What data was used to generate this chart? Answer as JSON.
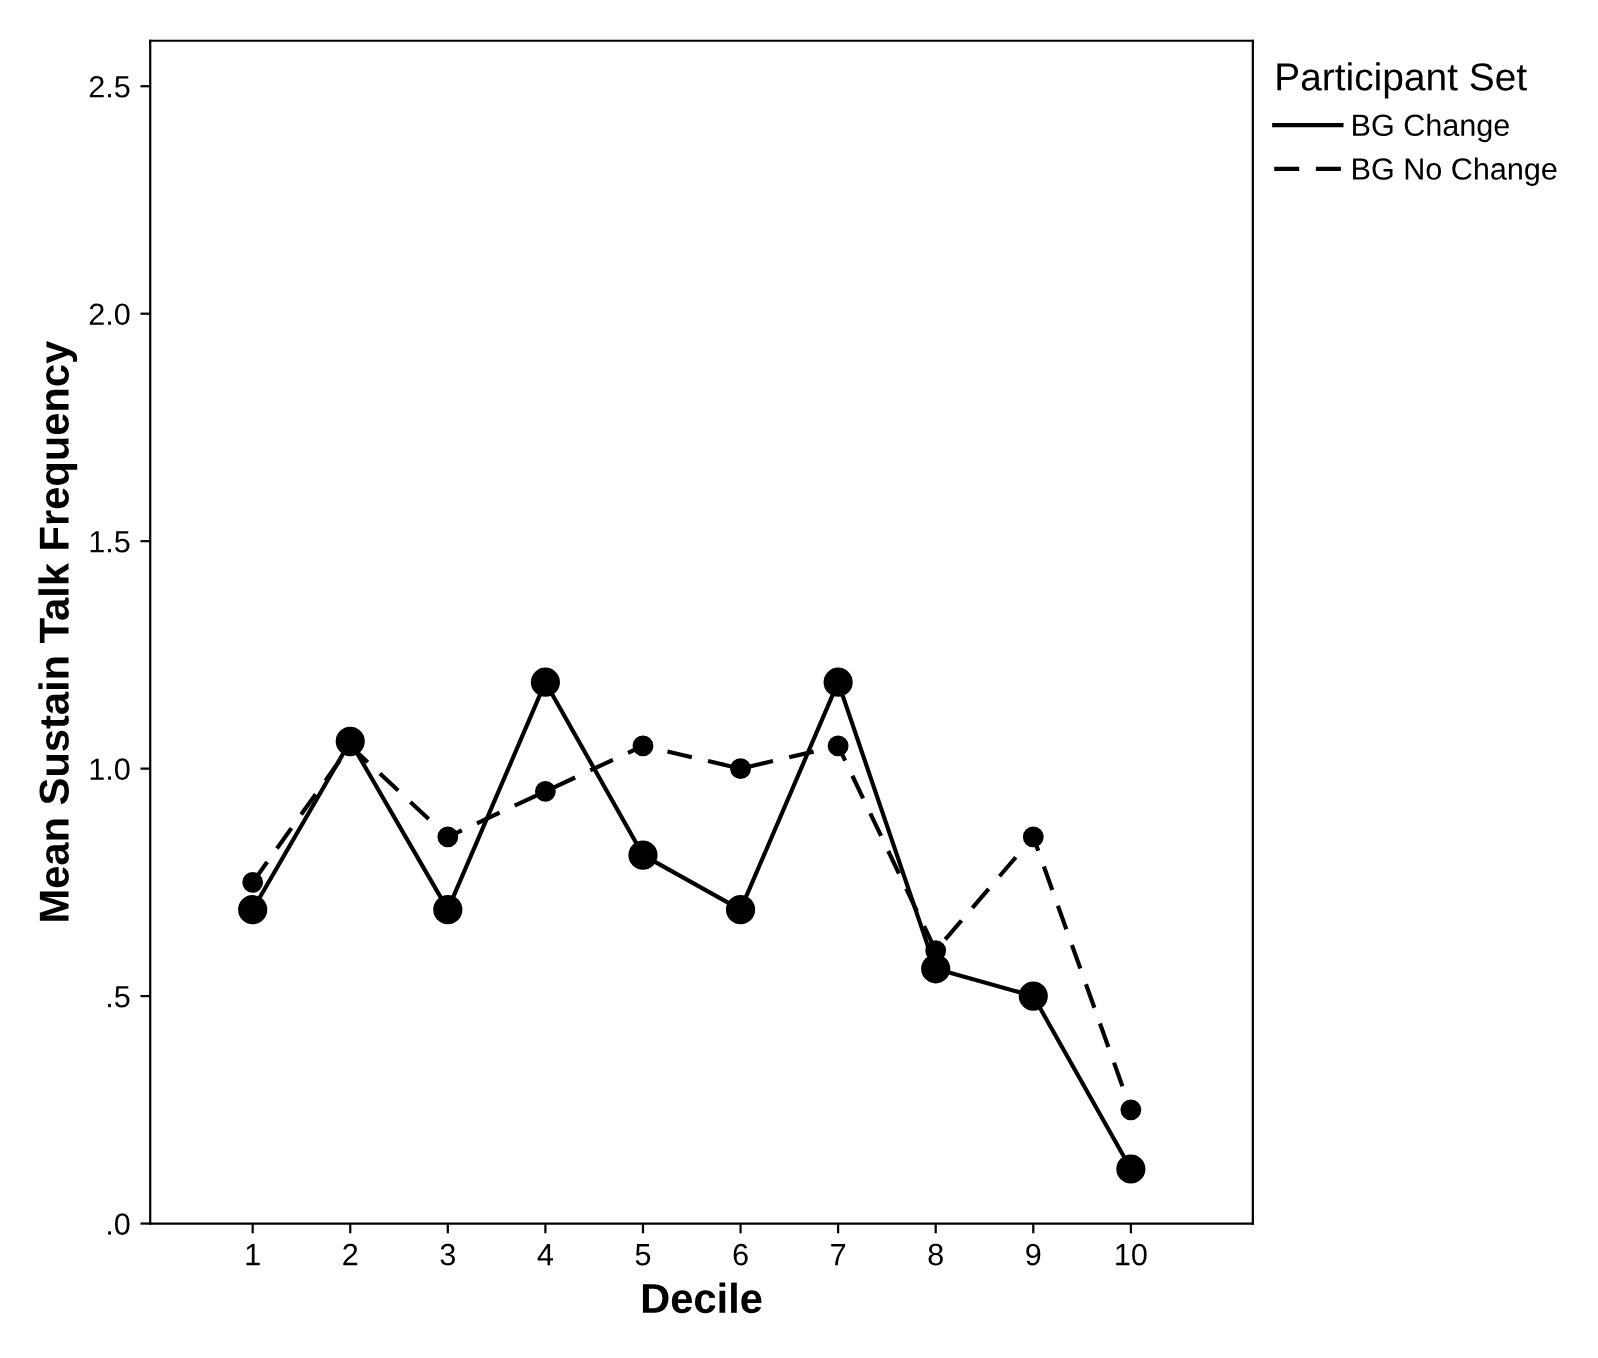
{
  "chart_data": {
    "type": "line",
    "xlabel": "Decile",
    "ylabel": "Mean Sustain Talk Frequency",
    "legend_title": "Participant Set",
    "legend": "top right",
    "categories": [
      "1",
      "2",
      "3",
      "4",
      "5",
      "6",
      "7",
      "8",
      "9",
      "10"
    ],
    "ylim": [
      0,
      2.6
    ],
    "yticks": [
      {
        "value": 0,
        "label": ".0"
      },
      {
        "value": 0.5,
        "label": ".5"
      },
      {
        "value": 1.0,
        "label": "1.0"
      },
      {
        "value": 1.5,
        "label": "1.5"
      },
      {
        "value": 2.0,
        "label": "2.0"
      },
      {
        "value": 2.5,
        "label": "2.5"
      }
    ],
    "grid": false,
    "marker": "circle",
    "series": [
      {
        "name": "BG Change",
        "color": "#000000",
        "line_style": "solid",
        "values": [
          0.69,
          1.06,
          0.69,
          1.19,
          0.81,
          0.69,
          1.19,
          0.56,
          0.5,
          0.12
        ]
      },
      {
        "name": "BG No Change",
        "color": "#000000",
        "line_style": "dashed",
        "values": [
          0.75,
          1.05,
          0.85,
          0.95,
          1.05,
          1.0,
          1.05,
          0.6,
          0.85,
          0.25
        ]
      }
    ]
  }
}
